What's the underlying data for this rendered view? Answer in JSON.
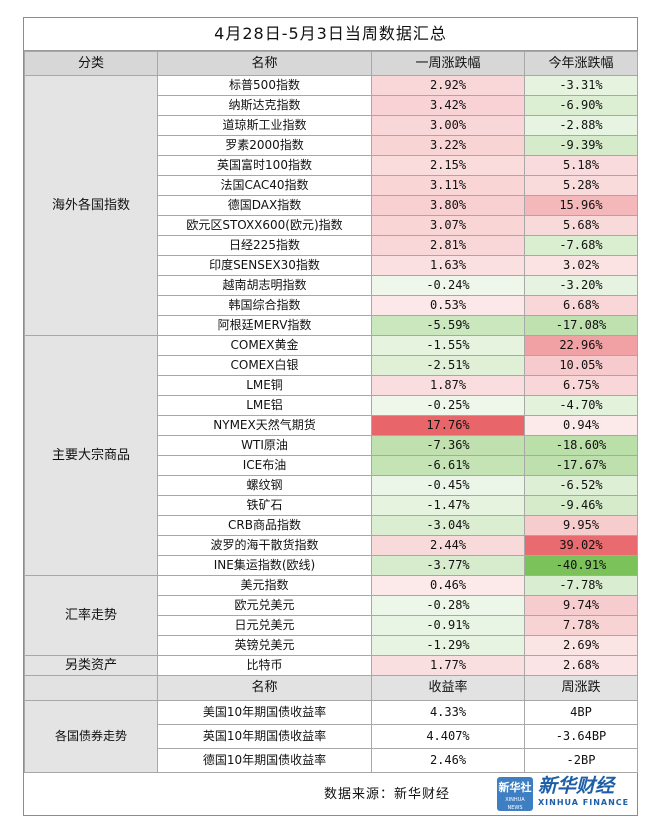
{
  "title": "4月28日-5月3日当周数据汇总",
  "header": {
    "category": "分类",
    "name": "名称",
    "week": "一周涨跌幅",
    "ytd": "今年涨跌幅"
  },
  "groups": [
    {
      "category": "海外各国指数",
      "rows": [
        {
          "name": "标普500指数",
          "week": "2.92%",
          "ytd": "-3.31%"
        },
        {
          "name": "纳斯达克指数",
          "week": "3.42%",
          "ytd": "-6.90%"
        },
        {
          "name": "道琼斯工业指数",
          "week": "3.00%",
          "ytd": "-2.88%"
        },
        {
          "name": "罗素2000指数",
          "week": "3.22%",
          "ytd": "-9.39%"
        },
        {
          "name": "英国富时100指数",
          "week": "2.15%",
          "ytd": "5.18%"
        },
        {
          "name": "法国CAC40指数",
          "week": "3.11%",
          "ytd": "5.28%"
        },
        {
          "name": "德国DAX指数",
          "week": "3.80%",
          "ytd": "15.96%"
        },
        {
          "name": "欧元区STOXX600(欧元)指数",
          "week": "3.07%",
          "ytd": "5.68%"
        },
        {
          "name": "日经225指数",
          "week": "2.81%",
          "ytd": "-7.68%"
        },
        {
          "name": "印度SENSEX30指数",
          "week": "1.63%",
          "ytd": "3.02%"
        },
        {
          "name": "越南胡志明指数",
          "week": "-0.24%",
          "ytd": "-3.20%"
        },
        {
          "name": "韩国综合指数",
          "week": "0.53%",
          "ytd": "6.68%"
        },
        {
          "name": "阿根廷MERV指数",
          "week": "-5.59%",
          "ytd": "-17.08%"
        }
      ]
    },
    {
      "category": "主要大宗商品",
      "rows": [
        {
          "name": "COMEX黄金",
          "week": "-1.55%",
          "ytd": "22.96%"
        },
        {
          "name": "COMEX白银",
          "week": "-2.51%",
          "ytd": "10.05%"
        },
        {
          "name": "LME铜",
          "week": "1.87%",
          "ytd": "6.75%"
        },
        {
          "name": "LME铝",
          "week": "-0.25%",
          "ytd": "-4.70%"
        },
        {
          "name": "NYMEX天然气期货",
          "week": "17.76%",
          "ytd": "0.94%"
        },
        {
          "name": "WTI原油",
          "week": "-7.36%",
          "ytd": "-18.60%"
        },
        {
          "name": "ICE布油",
          "week": "-6.61%",
          "ytd": "-17.67%"
        },
        {
          "name": "螺纹钢",
          "week": "-0.45%",
          "ytd": "-6.52%"
        },
        {
          "name": "铁矿石",
          "week": "-1.47%",
          "ytd": "-9.46%"
        },
        {
          "name": "CRB商品指数",
          "week": "-3.04%",
          "ytd": "9.95%"
        },
        {
          "name": "波罗的海干散货指数",
          "week": "2.44%",
          "ytd": "39.02%"
        },
        {
          "name": "INE集运指数(欧线)",
          "week": "-3.77%",
          "ytd": "-40.91%"
        }
      ]
    },
    {
      "category": "汇率走势",
      "rows": [
        {
          "name": "美元指数",
          "week": "0.46%",
          "ytd": "-7.78%"
        },
        {
          "name": "欧元兑美元",
          "week": "-0.28%",
          "ytd": "9.74%"
        },
        {
          "name": "日元兑美元",
          "week": "-0.91%",
          "ytd": "7.78%"
        },
        {
          "name": "英镑兑美元",
          "week": "-1.29%",
          "ytd": "2.69%"
        }
      ]
    },
    {
      "category": "另类资产",
      "rows": [
        {
          "name": "比特币",
          "week": "1.77%",
          "ytd": "2.68%"
        }
      ]
    }
  ],
  "bond_header": {
    "name": "名称",
    "yield": "收益率",
    "change": "周涨跌"
  },
  "bonds": {
    "category": "各国债券走势",
    "rows": [
      {
        "name": "美国10年期国债收益率",
        "yield": "4.33%",
        "change": "4BP"
      },
      {
        "name": "英国10年期国债收益率",
        "yield": "4.407%",
        "change": "-3.64BP"
      },
      {
        "name": "德国10年期国债收益率",
        "yield": "2.46%",
        "change": "-2BP"
      }
    ]
  },
  "footer": {
    "source": "数据来源：新华财经",
    "logo_box_text": "新华社",
    "logo_box_sub": "XINHUA NEWS",
    "brand_cn": "新华财经",
    "brand_en": "XINHUA FINANCE"
  },
  "colors": {
    "positive": "#e8656a",
    "negative": "#7cc25a",
    "neutral": "#ffffff"
  }
}
